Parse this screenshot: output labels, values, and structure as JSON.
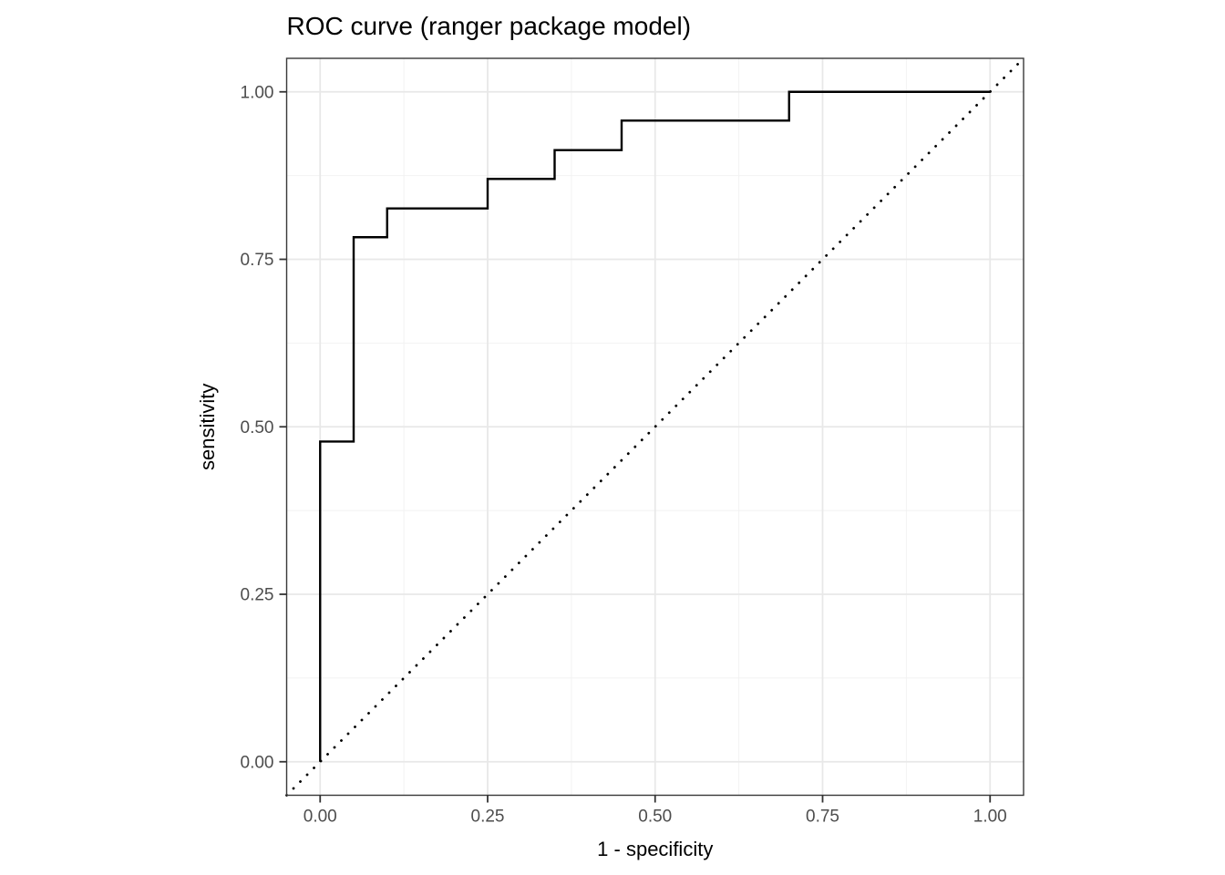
{
  "chart_data": {
    "type": "line",
    "title": "ROC curve (ranger package model)",
    "xlabel": "1 - specificity",
    "ylabel": "sensitivity",
    "xlim": [
      -0.05,
      1.05
    ],
    "ylim": [
      -0.05,
      1.05
    ],
    "x_ticks": [
      0.0,
      0.25,
      0.5,
      0.75,
      1.0
    ],
    "y_ticks": [
      0.0,
      0.25,
      0.5,
      0.75,
      1.0
    ],
    "x_tick_labels": [
      "0.00",
      "0.25",
      "0.50",
      "0.75",
      "1.00"
    ],
    "y_tick_labels": [
      "0.00",
      "0.25",
      "0.50",
      "0.75",
      "1.00"
    ],
    "x_minor_ticks": [
      0.125,
      0.375,
      0.625,
      0.875
    ],
    "y_minor_ticks": [
      0.125,
      0.375,
      0.625,
      0.875
    ],
    "grid": "on",
    "legend": "none",
    "series": [
      {
        "name": "roc-step-curve",
        "linetype": "solid",
        "color": "#000000",
        "points": [
          [
            0.0,
            0.0
          ],
          [
            0.0,
            0.478
          ],
          [
            0.05,
            0.478
          ],
          [
            0.05,
            0.783
          ],
          [
            0.1,
            0.783
          ],
          [
            0.1,
            0.826
          ],
          [
            0.25,
            0.826
          ],
          [
            0.25,
            0.87
          ],
          [
            0.35,
            0.87
          ],
          [
            0.35,
            0.913
          ],
          [
            0.45,
            0.913
          ],
          [
            0.45,
            0.957
          ],
          [
            0.7,
            0.957
          ],
          [
            0.7,
            1.0
          ],
          [
            1.0,
            1.0
          ]
        ]
      },
      {
        "name": "chance-diagonal",
        "linetype": "dotted",
        "color": "#000000",
        "points": [
          [
            -0.05,
            -0.05
          ],
          [
            1.05,
            1.05
          ]
        ]
      }
    ],
    "colors": {
      "panel_background": "#ffffff",
      "plot_background": "#ffffff",
      "grid_major": "#e8e8e8",
      "grid_minor": "#f2f2f2",
      "panel_border": "#383838",
      "tick_mark": "#333333",
      "tick_label": "#4d4d4d",
      "title": "#000000",
      "axis_title": "#000000"
    }
  }
}
